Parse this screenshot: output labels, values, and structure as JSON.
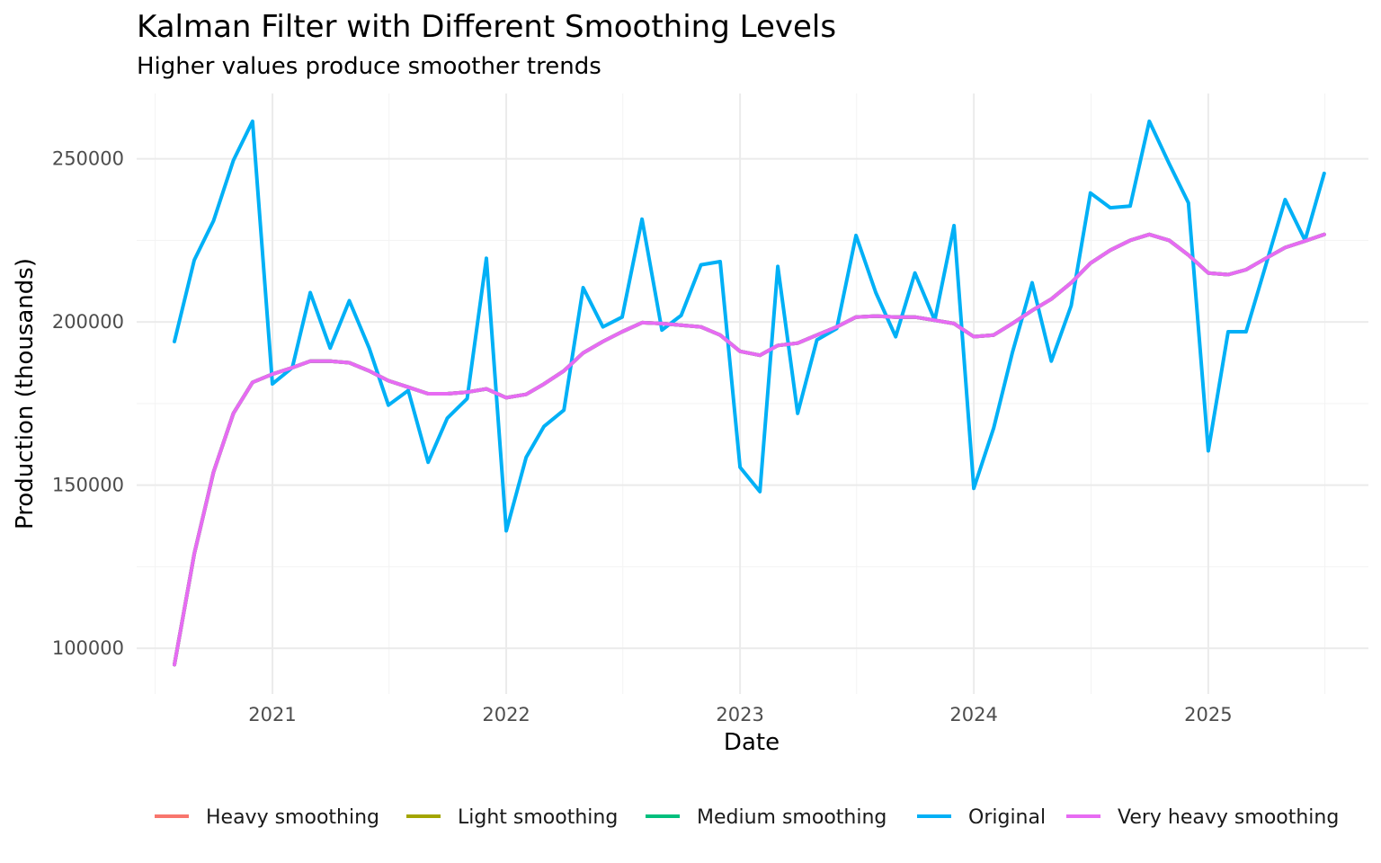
{
  "chart_data": {
    "type": "line",
    "title": "Kalman Filter with Different Smoothing Levels",
    "subtitle": "Higher values produce smoother trends",
    "xlabel": "Date",
    "ylabel": "Production (thousands)",
    "x_ticks": [
      "2021",
      "2022",
      "2023",
      "2024",
      "2025"
    ],
    "y_ticks": [
      "100000",
      "150000",
      "200000",
      "250000"
    ],
    "ylim": [
      86000,
      270000
    ],
    "xlim": [
      "2020-06-03",
      "2025-09-08"
    ],
    "grid": true,
    "legend_position": "bottom",
    "x": [
      "2020-08-01",
      "2020-09-01",
      "2020-10-01",
      "2020-11-01",
      "2020-12-01",
      "2021-01-01",
      "2021-02-01",
      "2021-03-01",
      "2021-04-01",
      "2021-05-01",
      "2021-06-01",
      "2021-07-01",
      "2021-08-01",
      "2021-09-01",
      "2021-10-01",
      "2021-11-01",
      "2021-12-01",
      "2022-01-01",
      "2022-02-01",
      "2022-03-01",
      "2022-04-01",
      "2022-05-01",
      "2022-06-01",
      "2022-07-01",
      "2022-08-01",
      "2022-09-01",
      "2022-10-01",
      "2022-11-01",
      "2022-12-01",
      "2023-01-01",
      "2023-02-01",
      "2023-03-01",
      "2023-04-01",
      "2023-05-01",
      "2023-06-01",
      "2023-07-01",
      "2023-08-01",
      "2023-09-01",
      "2023-10-01",
      "2023-11-01",
      "2023-12-01",
      "2024-01-01",
      "2024-02-01",
      "2024-03-01",
      "2024-04-01",
      "2024-05-01",
      "2024-06-01",
      "2024-07-01",
      "2024-08-01",
      "2024-09-01",
      "2024-10-01",
      "2024-11-01",
      "2024-12-01",
      "2025-01-01",
      "2025-02-01",
      "2025-03-01",
      "2025-04-01",
      "2025-05-01",
      "2025-06-01",
      "2025-07-01"
    ],
    "series": [
      {
        "name": "Heavy smoothing",
        "color": "#F8766D",
        "values": [
          95000,
          129000,
          154000,
          172000,
          181500,
          184000,
          186000,
          188000,
          188000,
          187500,
          185000,
          182000,
          180000,
          178000,
          178000,
          178500,
          179500,
          176800,
          177800,
          181000,
          185000,
          190500,
          194000,
          197000,
          199800,
          199500,
          199000,
          198500,
          196000,
          191000,
          189800,
          192800,
          193500,
          196000,
          198500,
          201500,
          201800,
          201500,
          201500,
          200500,
          199500,
          195500,
          196000,
          199500,
          203500,
          207000,
          212000,
          218000,
          222000,
          225000,
          226800,
          225000,
          220500,
          215000,
          214500,
          216000,
          219500,
          222800,
          224800,
          226800
        ]
      },
      {
        "name": "Light smoothing",
        "color": "#A3A500",
        "values": [
          95000,
          129000,
          154000,
          172000,
          181500,
          184000,
          186000,
          188000,
          188000,
          187500,
          185000,
          182000,
          180000,
          178000,
          178000,
          178500,
          179500,
          176800,
          177800,
          181000,
          185000,
          190500,
          194000,
          197000,
          199800,
          199500,
          199000,
          198500,
          196000,
          191000,
          189800,
          192800,
          193500,
          196000,
          198500,
          201500,
          201800,
          201500,
          201500,
          200500,
          199500,
          195500,
          196000,
          199500,
          203500,
          207000,
          212000,
          218000,
          222000,
          225000,
          226800,
          225000,
          220500,
          215000,
          214500,
          216000,
          219500,
          222800,
          224800,
          226800
        ]
      },
      {
        "name": "Medium smoothing",
        "color": "#00BF7D",
        "values": [
          95000,
          129000,
          154000,
          172000,
          181500,
          184000,
          186000,
          188000,
          188000,
          187500,
          185000,
          182000,
          180000,
          178000,
          178000,
          178500,
          179500,
          176800,
          177800,
          181000,
          185000,
          190500,
          194000,
          197000,
          199800,
          199500,
          199000,
          198500,
          196000,
          191000,
          189800,
          192800,
          193500,
          196000,
          198500,
          201500,
          201800,
          201500,
          201500,
          200500,
          199500,
          195500,
          196000,
          199500,
          203500,
          207000,
          212000,
          218000,
          222000,
          225000,
          226800,
          225000,
          220500,
          215000,
          214500,
          216000,
          219500,
          222800,
          224800,
          226800
        ]
      },
      {
        "name": "Original",
        "color": "#00B0F6",
        "values": [
          194000,
          219000,
          231000,
          249500,
          261500,
          181000,
          186000,
          209000,
          192000,
          206500,
          192000,
          174500,
          179000,
          157000,
          170500,
          176500,
          219500,
          136000,
          158500,
          168000,
          173000,
          210500,
          198500,
          201500,
          231500,
          197500,
          202000,
          217500,
          218500,
          155500,
          148000,
          217000,
          172000,
          194500,
          198000,
          226500,
          209000,
          195500,
          215000,
          200500,
          229500,
          149000,
          167500,
          190500,
          212000,
          188000,
          205000,
          239500,
          235000,
          235500,
          261500,
          248500,
          236500,
          160500,
          197000,
          197000,
          217500,
          237500,
          225000,
          245500
        ]
      },
      {
        "name": "Very heavy smoothing",
        "color": "#E76BF3",
        "values": [
          95000,
          129000,
          154000,
          172000,
          181500,
          184000,
          186000,
          188000,
          188000,
          187500,
          185000,
          182000,
          180000,
          178000,
          178000,
          178500,
          179500,
          176800,
          177800,
          181000,
          185000,
          190500,
          194000,
          197000,
          199800,
          199500,
          199000,
          198500,
          196000,
          191000,
          189800,
          192800,
          193500,
          196000,
          198500,
          201500,
          201800,
          201500,
          201500,
          200500,
          199500,
          195500,
          196000,
          199500,
          203500,
          207000,
          212000,
          218000,
          222000,
          225000,
          226800,
          225000,
          220500,
          215000,
          214500,
          216000,
          219500,
          222800,
          224800,
          226800
        ]
      }
    ]
  }
}
